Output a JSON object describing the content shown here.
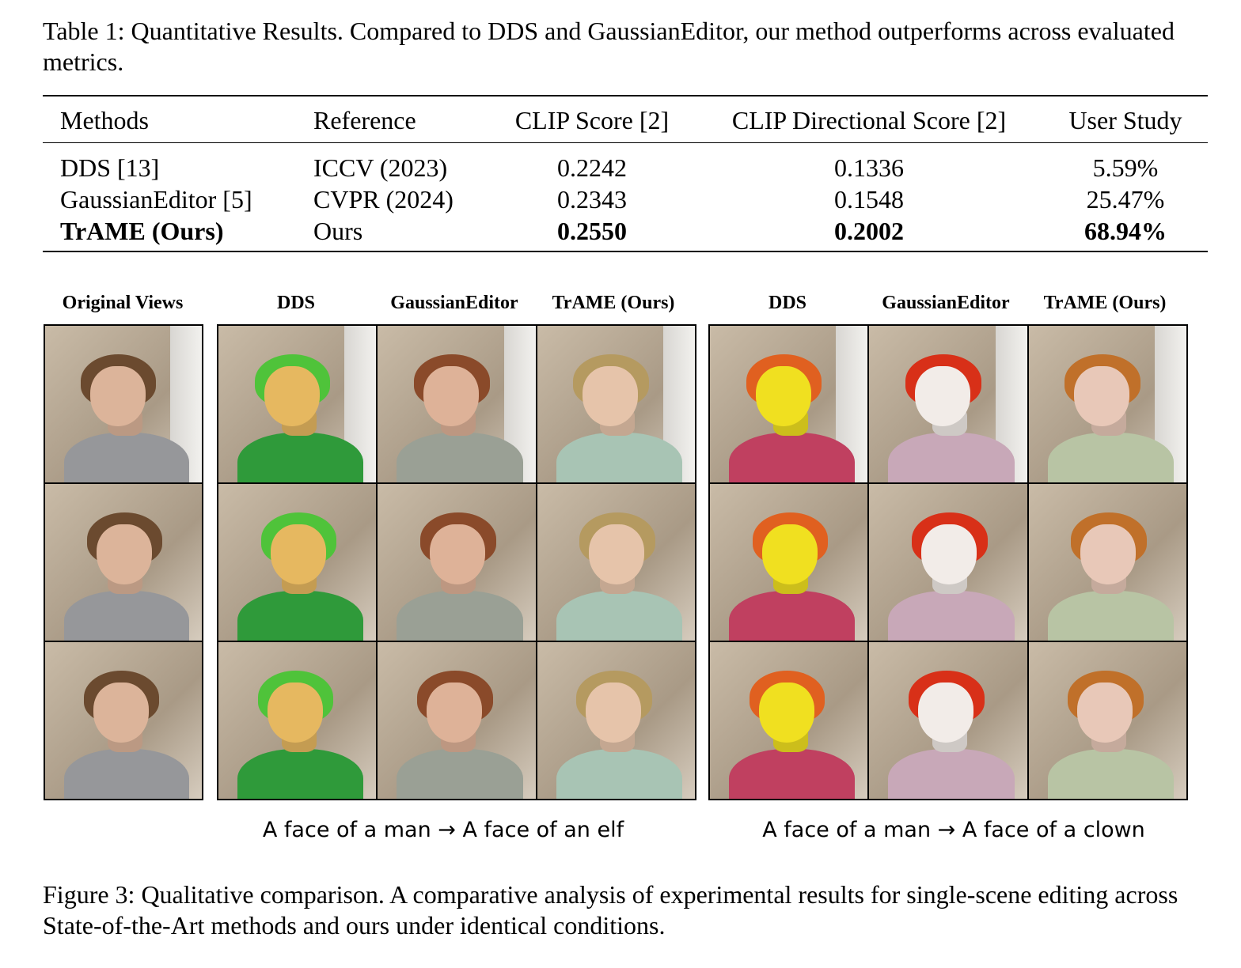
{
  "table_caption": "Table 1:   Quantitative Results.  Compared to DDS and GaussianEditor, our method outperforms across evaluated metrics.",
  "table": {
    "headers": [
      "Methods",
      "Reference",
      "CLIP Score [2]",
      "CLIP Directional Score [2]",
      "User Study"
    ],
    "rows": [
      {
        "method": "DDS [13]",
        "reference": "ICCV (2023)",
        "clip": "0.2242",
        "clip_dir": "0.1336",
        "user": "5.59%"
      },
      {
        "method": "GaussianEditor [5]",
        "reference": "CVPR (2024)",
        "clip": "0.2343",
        "clip_dir": "0.1548",
        "user": "25.47%"
      },
      {
        "method": "TrAME (Ours)",
        "reference": "Ours",
        "clip": "0.2550",
        "clip_dir": "0.2002",
        "user": "68.94%"
      }
    ]
  },
  "figure": {
    "headers": [
      "Original Views",
      "DDS",
      "GaussianEditor",
      "TrAME (Ours)",
      "DDS",
      "GaussianEditor",
      "TrAME (Ours)"
    ],
    "prompts": [
      "A face of a man → A face of an elf",
      "A face of a man → A face of a clown"
    ],
    "palettes": [
      {
        "hair": "#6b4a2f",
        "face": "#dcb49a",
        "shirt": "#96979a"
      },
      {
        "hair": "#4fc33a",
        "face": "#e6b860",
        "shirt": "#2f9a3a"
      },
      {
        "hair": "#8a4a2a",
        "face": "#deb298",
        "shirt": "#9aa095"
      },
      {
        "hair": "#b59a60",
        "face": "#e6c4aa",
        "shirt": "#a8c4b4"
      },
      {
        "hair": "#e06020",
        "face": "#f0e020",
        "shirt": "#c04060"
      },
      {
        "hair": "#d83018",
        "face": "#f2ece8",
        "shirt": "#c8a8b8"
      },
      {
        "hair": "#c0702a",
        "face": "#e8c8b8",
        "shirt": "#b8c4a4"
      }
    ]
  },
  "figure_caption": "Figure 3: Qualitative comparison. A comparative analysis of experimental results for single-scene editing across State-of-the-Art methods and ours under identical conditions."
}
